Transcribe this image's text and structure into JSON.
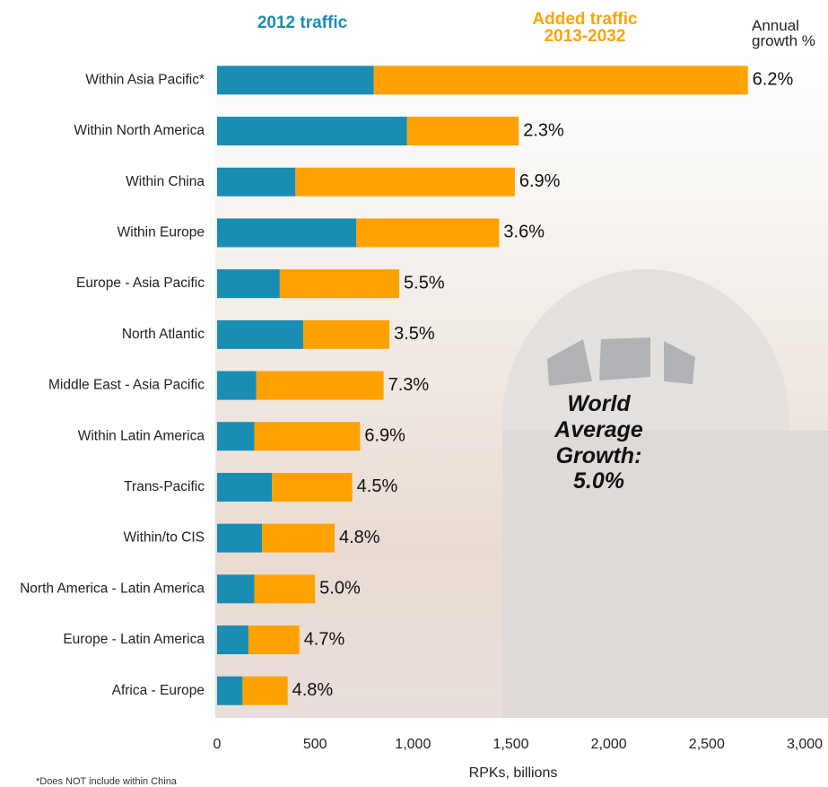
{
  "chart_data": {
    "type": "bar",
    "orientation": "horizontal",
    "stacked": true,
    "categories": [
      "Within Asia Pacific*",
      "Within North America",
      "Within China",
      "Within Europe",
      "Europe - Asia Pacific",
      "North Atlantic",
      "Middle East - Asia Pacific",
      "Within Latin America",
      "Trans-Pacific",
      "Within/to CIS",
      "North America - Latin America",
      "Europe - Latin America",
      "Africa - Europe"
    ],
    "series": [
      {
        "name": "2012 traffic",
        "color": "#1a8db3",
        "values": [
          800,
          970,
          400,
          710,
          320,
          440,
          200,
          190,
          280,
          230,
          190,
          160,
          130
        ]
      },
      {
        "name": "Added traffic 2013-2032",
        "color": "#ffa200",
        "values": [
          1910,
          570,
          1120,
          730,
          610,
          440,
          650,
          540,
          410,
          370,
          310,
          260,
          230
        ]
      }
    ],
    "growth_title": "Annual growth %",
    "growth_labels": [
      "6.2%",
      "2.3%",
      "6.9%",
      "3.6%",
      "5.5%",
      "3.5%",
      "7.3%",
      "6.9%",
      "4.5%",
      "4.8%",
      "5.0%",
      "4.7%",
      "4.8%"
    ],
    "xlim": [
      0,
      3000
    ],
    "xticks": [
      0,
      500,
      {
        "value": 1000,
        "label": "1,000"
      },
      {
        "value": 1500,
        "label": "1,500"
      },
      {
        "value": 2000,
        "label": "2,000"
      },
      {
        "value": 2500,
        "label": "2,500"
      },
      {
        "value": 3000,
        "label": "3,000"
      }
    ],
    "x_label": "RPKs, billions",
    "annotation": "World Average Growth: 5.0%",
    "footnote": "*Does NOT include within China"
  }
}
